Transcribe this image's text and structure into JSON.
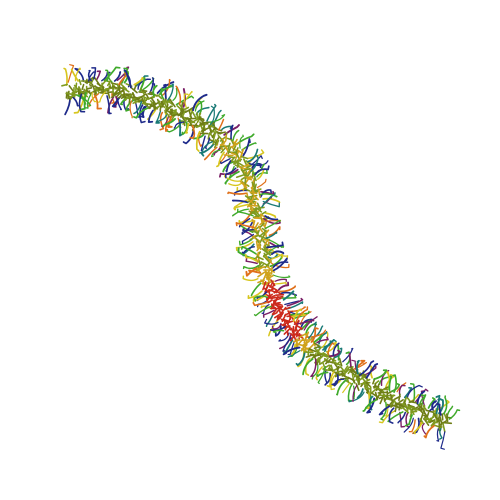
{
  "image": {
    "subject": "protein-filament",
    "colors": {
      "background": "#ffffff",
      "core_green": "#7f9a1f",
      "core_olive": "#6e7d16",
      "core_yellow": "#cfa21c",
      "core_red": "#cc2a1c",
      "spike_blue": "#1e2a8a",
      "spike_purple": "#7a1f66",
      "spike_green": "#3faa2b",
      "spike_orange": "#e0701a",
      "spike_yellow": "#d7c61f",
      "spike_teal": "#1a7a76"
    }
  }
}
